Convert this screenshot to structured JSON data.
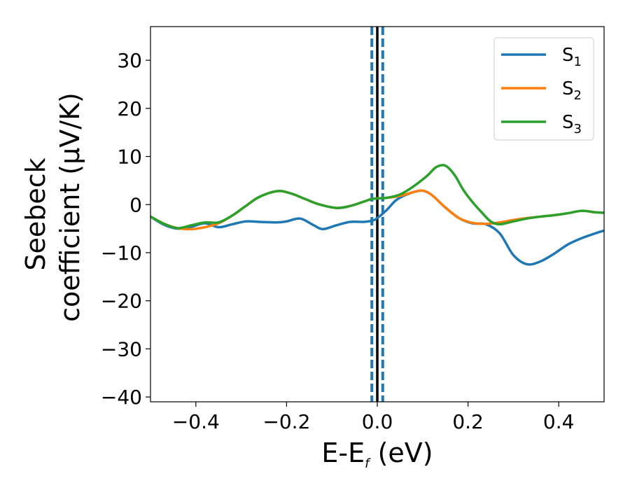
{
  "chart_data": {
    "type": "line",
    "xlabel_main": "E-E",
    "xlabel_sub": "f",
    "xlabel_unit": " (eV)",
    "ylabel_line1": "Seebeck",
    "ylabel_line2": "coefficient  (μV/K)",
    "xlim": [
      -0.5,
      0.5
    ],
    "ylim": [
      -41,
      37
    ],
    "x_ticks": [
      -0.4,
      -0.2,
      0.0,
      0.2,
      0.4
    ],
    "x_tick_labels": [
      "−0.4",
      "−0.2",
      "0.0",
      "0.2",
      "0.4"
    ],
    "y_ticks": [
      -40,
      -30,
      -20,
      -10,
      0,
      10,
      20,
      30
    ],
    "y_tick_labels": [
      "−40",
      "−30",
      "−20",
      "−10",
      "0",
      "10",
      "20",
      "30"
    ],
    "legend_position": "top-right",
    "series": [
      {
        "name": "S",
        "subscript": "1",
        "color": "#1f77b4",
        "points": [
          [
            -0.5,
            -2.5
          ],
          [
            -0.47,
            -4.2
          ],
          [
            -0.44,
            -5.0
          ],
          [
            -0.41,
            -4.6
          ],
          [
            -0.38,
            -3.9
          ],
          [
            -0.35,
            -4.7
          ],
          [
            -0.32,
            -4.1
          ],
          [
            -0.29,
            -3.5
          ],
          [
            -0.26,
            -3.6
          ],
          [
            -0.22,
            -3.7
          ],
          [
            -0.2,
            -3.5
          ],
          [
            -0.17,
            -2.9
          ],
          [
            -0.14,
            -4.3
          ],
          [
            -0.12,
            -5.1
          ],
          [
            -0.09,
            -4.3
          ],
          [
            -0.06,
            -3.6
          ],
          [
            -0.03,
            -3.6
          ],
          [
            -0.01,
            -3.3
          ],
          [
            0.0,
            -2.8
          ],
          [
            0.02,
            -1.2
          ],
          [
            0.04,
            0.8
          ],
          [
            0.06,
            1.9
          ],
          [
            0.08,
            2.6
          ],
          [
            0.1,
            2.9
          ],
          [
            0.12,
            2.0
          ],
          [
            0.15,
            -0.6
          ],
          [
            0.18,
            -2.8
          ],
          [
            0.21,
            -3.9
          ],
          [
            0.24,
            -4.1
          ],
          [
            0.27,
            -6.0
          ],
          [
            0.3,
            -10.5
          ],
          [
            0.33,
            -12.4
          ],
          [
            0.36,
            -11.8
          ],
          [
            0.39,
            -10.2
          ],
          [
            0.42,
            -8.3
          ],
          [
            0.45,
            -7.0
          ],
          [
            0.48,
            -6.0
          ],
          [
            0.5,
            -5.4
          ]
        ]
      },
      {
        "name": "S",
        "subscript": "2",
        "color": "#ff7f0e",
        "points": [
          [
            -0.5,
            -2.5
          ],
          [
            -0.47,
            -4.0
          ],
          [
            -0.44,
            -4.9
          ],
          [
            -0.41,
            -5.1
          ],
          [
            -0.38,
            -4.7
          ],
          [
            -0.35,
            -3.9
          ],
          [
            -0.32,
            -2.3
          ],
          [
            -0.29,
            -0.3
          ],
          [
            -0.26,
            1.6
          ],
          [
            -0.22,
            2.8
          ],
          [
            -0.19,
            2.3
          ],
          [
            -0.16,
            1.2
          ],
          [
            -0.13,
            0.1
          ],
          [
            -0.09,
            -0.7
          ],
          [
            -0.06,
            -0.3
          ],
          [
            -0.03,
            0.6
          ],
          [
            -0.01,
            1.2
          ],
          [
            0.02,
            1.4
          ],
          [
            0.05,
            1.8
          ],
          [
            0.08,
            2.6
          ],
          [
            0.1,
            2.9
          ],
          [
            0.12,
            2.0
          ],
          [
            0.15,
            -0.6
          ],
          [
            0.18,
            -2.8
          ],
          [
            0.21,
            -3.8
          ],
          [
            0.24,
            -4.0
          ],
          [
            0.27,
            -3.7
          ],
          [
            0.3,
            -3.2
          ],
          [
            0.33,
            -2.8
          ],
          [
            0.36,
            -2.5
          ],
          [
            0.39,
            -2.2
          ],
          [
            0.42,
            -1.8
          ],
          [
            0.45,
            -1.3
          ],
          [
            0.48,
            -1.6
          ],
          [
            0.5,
            -1.7
          ]
        ]
      },
      {
        "name": "S",
        "subscript": "3",
        "color": "#2ca02c",
        "points": [
          [
            -0.5,
            -2.5
          ],
          [
            -0.47,
            -4.0
          ],
          [
            -0.44,
            -4.9
          ],
          [
            -0.41,
            -4.3
          ],
          [
            -0.38,
            -3.7
          ],
          [
            -0.35,
            -3.7
          ],
          [
            -0.32,
            -2.3
          ],
          [
            -0.29,
            -0.3
          ],
          [
            -0.26,
            1.6
          ],
          [
            -0.22,
            2.8
          ],
          [
            -0.19,
            2.3
          ],
          [
            -0.16,
            1.2
          ],
          [
            -0.13,
            0.1
          ],
          [
            -0.09,
            -0.7
          ],
          [
            -0.06,
            -0.3
          ],
          [
            -0.03,
            0.6
          ],
          [
            -0.01,
            1.2
          ],
          [
            0.02,
            1.4
          ],
          [
            0.05,
            2.1
          ],
          [
            0.08,
            3.8
          ],
          [
            0.11,
            6.0
          ],
          [
            0.13,
            7.8
          ],
          [
            0.15,
            8.1
          ],
          [
            0.17,
            6.2
          ],
          [
            0.19,
            3.0
          ],
          [
            0.21,
            0.5
          ],
          [
            0.23,
            -1.6
          ],
          [
            0.25,
            -3.5
          ],
          [
            0.27,
            -4.1
          ],
          [
            0.3,
            -3.5
          ],
          [
            0.33,
            -2.9
          ],
          [
            0.36,
            -2.5
          ],
          [
            0.39,
            -2.2
          ],
          [
            0.42,
            -1.8
          ],
          [
            0.45,
            -1.3
          ],
          [
            0.48,
            -1.6
          ],
          [
            0.5,
            -1.7
          ]
        ]
      }
    ],
    "vlines": [
      {
        "x": 0.0,
        "color": "#000000",
        "style": "solid"
      },
      {
        "x": -0.012,
        "color": "#1f77b4",
        "style": "dashed"
      },
      {
        "x": 0.012,
        "color": "#1f77b4",
        "style": "dashed"
      }
    ]
  }
}
